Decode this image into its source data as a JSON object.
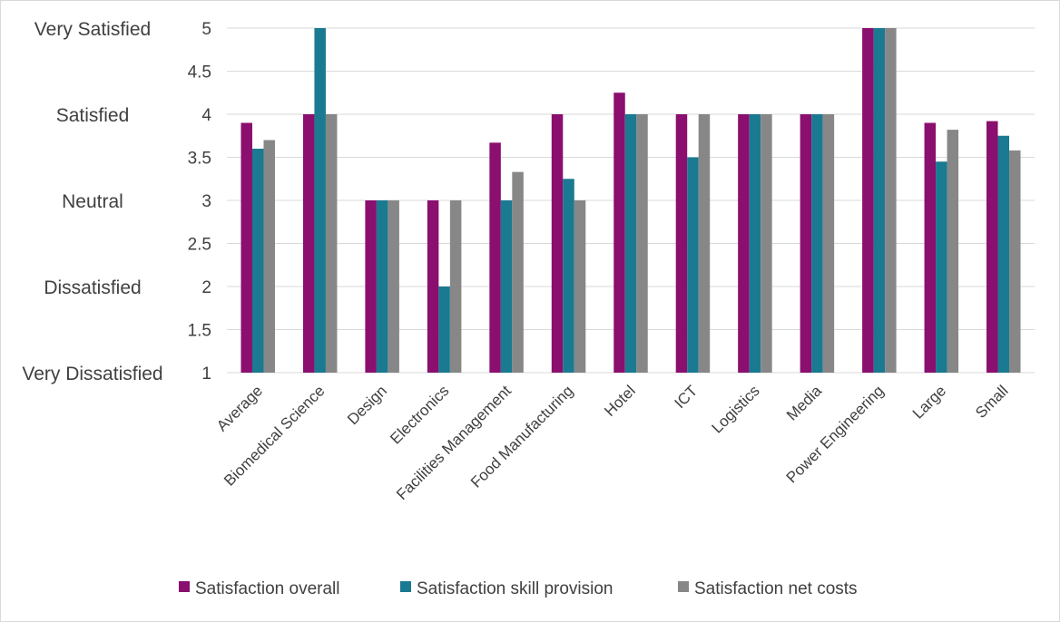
{
  "chart_data": {
    "type": "bar",
    "categories": [
      "Average",
      "Biomedical Science",
      "Design",
      "Electronics",
      "Facilities Management",
      "Food Manufacturing",
      "Hotel",
      "ICT",
      "Logistics",
      "Media",
      "Power Engineering",
      "Large",
      "Small"
    ],
    "series": [
      {
        "name": "Satisfaction overall",
        "color": "#8b0f6e",
        "values": [
          3.9,
          4.0,
          3.0,
          3.0,
          3.67,
          4.0,
          4.25,
          4.0,
          4.0,
          4.0,
          5.0,
          3.9,
          3.92
        ]
      },
      {
        "name": "Satisfaction skill provision",
        "color": "#1a7a91",
        "values": [
          3.6,
          5.0,
          3.0,
          2.0,
          3.0,
          3.25,
          4.0,
          3.5,
          4.0,
          4.0,
          5.0,
          3.45,
          3.75
        ]
      },
      {
        "name": "Satisfaction net costs",
        "color": "#878787",
        "values": [
          3.7,
          4.0,
          3.0,
          3.0,
          3.33,
          3.0,
          4.0,
          4.0,
          4.0,
          4.0,
          5.0,
          3.82,
          3.58
        ]
      }
    ],
    "ylim": [
      1,
      5
    ],
    "yticks": [
      "1",
      "1.5",
      "2",
      "2.5",
      "3",
      "3.5",
      "4",
      "4.5",
      "5"
    ],
    "ytick_values": [
      1,
      1.5,
      2,
      2.5,
      3,
      3.5,
      4,
      4.5,
      5
    ],
    "y_qualitative_labels": [
      {
        "value": 5,
        "text": "Very Satisfied"
      },
      {
        "value": 4,
        "text": "Satisfied"
      },
      {
        "value": 3,
        "text": "Neutral"
      },
      {
        "value": 2,
        "text": "Dissatisfied"
      },
      {
        "value": 1,
        "text": "Very Dissatisfied"
      }
    ],
    "grid": true,
    "legend_position": "bottom",
    "gridline_color": "#d9d9d9"
  }
}
